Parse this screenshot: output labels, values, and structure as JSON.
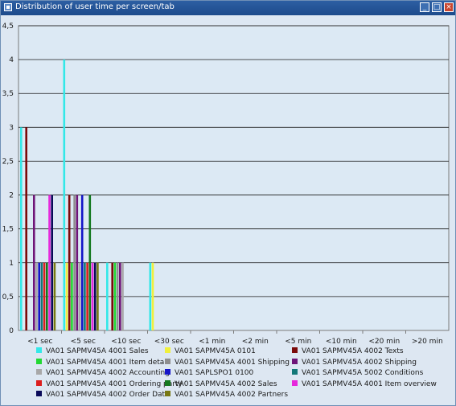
{
  "window": {
    "title": "Distribution of user time per screen/tab",
    "icon": "chart-window-icon",
    "buttons": {
      "minimize": "_",
      "maximize": "□",
      "close": "×"
    }
  },
  "chart_data": {
    "type": "bar",
    "title": "",
    "xlabel": "",
    "ylabel": "",
    "ylim": [
      0,
      4.5
    ],
    "yticks": [
      {
        "value": 0,
        "label": "0"
      },
      {
        "value": 0.5,
        "label": "0,5"
      },
      {
        "value": 1,
        "label": "1"
      },
      {
        "value": 1.5,
        "label": "1,5"
      },
      {
        "value": 2,
        "label": "2"
      },
      {
        "value": 2.5,
        "label": "2,5"
      },
      {
        "value": 3,
        "label": "3"
      },
      {
        "value": 3.5,
        "label": "3,5"
      },
      {
        "value": 4,
        "label": "4"
      },
      {
        "value": 4.5,
        "label": "4,5"
      }
    ],
    "grid": true,
    "legend_position": "bottom",
    "categories": [
      "<1 sec",
      "<5 sec",
      "<10 sec",
      "<30 sec",
      "<1 min",
      "<2 min",
      "<5 min",
      "<10 min",
      "<20 min",
      ">20 min"
    ],
    "series": [
      {
        "name": "VA01 SAPMV45A 4001 Sales",
        "color": "#33e8e8",
        "values": [
          3,
          4,
          1,
          1,
          0,
          0,
          0,
          0,
          0,
          0
        ]
      },
      {
        "name": "VA01 SAPMV45A 0101",
        "color": "#f0f03c",
        "values": [
          0,
          1,
          0,
          1,
          0,
          0,
          0,
          0,
          0,
          0
        ]
      },
      {
        "name": "VA01 SAPMV45A 4002 Texts",
        "color": "#7a0a0a",
        "values": [
          3,
          2,
          1,
          0,
          0,
          0,
          0,
          0,
          0,
          0
        ]
      },
      {
        "name": "VA01 SAPMV45A 4001 Item detail",
        "color": "#22d833",
        "values": [
          0,
          1,
          1,
          0,
          0,
          0,
          0,
          0,
          0,
          0
        ]
      },
      {
        "name": "VA01 SAPMV45A 4001 Shipping",
        "color": "#8e8e8e",
        "values": [
          0,
          2,
          1,
          0,
          0,
          0,
          0,
          0,
          0,
          0
        ]
      },
      {
        "name": "VA01 SAPMV45A 4002 Shipping",
        "color": "#6e1478",
        "values": [
          2,
          2,
          1,
          0,
          0,
          0,
          0,
          0,
          0,
          0
        ]
      },
      {
        "name": "VA01 SAPMV45A 4002 Accounting",
        "color": "#a8a8a8",
        "values": [
          1,
          1,
          1,
          0,
          0,
          0,
          0,
          0,
          0,
          0
        ]
      },
      {
        "name": "VA01 SAPLSPO1 0100",
        "color": "#1414c8",
        "values": [
          1,
          2,
          0,
          0,
          0,
          0,
          0,
          0,
          0,
          0
        ]
      },
      {
        "name": "VA01 SAPMV45A 5002 Conditions",
        "color": "#127878",
        "values": [
          1,
          1,
          0,
          0,
          0,
          0,
          0,
          0,
          0,
          0
        ]
      },
      {
        "name": "VA01 SAPMV45A 4001 Ordering party",
        "color": "#dc1e1e",
        "values": [
          1,
          1,
          0,
          0,
          0,
          0,
          0,
          0,
          0,
          0
        ]
      },
      {
        "name": "VA01 SAPMV45A 4002 Sales",
        "color": "#12781e",
        "values": [
          1,
          2,
          0,
          0,
          0,
          0,
          0,
          0,
          0,
          0
        ]
      },
      {
        "name": "VA01 SAPMV45A 4001 Item overview",
        "color": "#e628dc",
        "values": [
          2,
          1,
          0,
          0,
          0,
          0,
          0,
          0,
          0,
          0
        ]
      },
      {
        "name": "VA01 SAPMV45A 4002 Order Data",
        "color": "#0a0a5a",
        "values": [
          2,
          1,
          0,
          0,
          0,
          0,
          0,
          0,
          0,
          0
        ]
      },
      {
        "name": "VA01 SAPMV45A 4002 Partners",
        "color": "#787814",
        "values": [
          1,
          1,
          0,
          0,
          0,
          0,
          0,
          0,
          0,
          0
        ]
      }
    ]
  }
}
